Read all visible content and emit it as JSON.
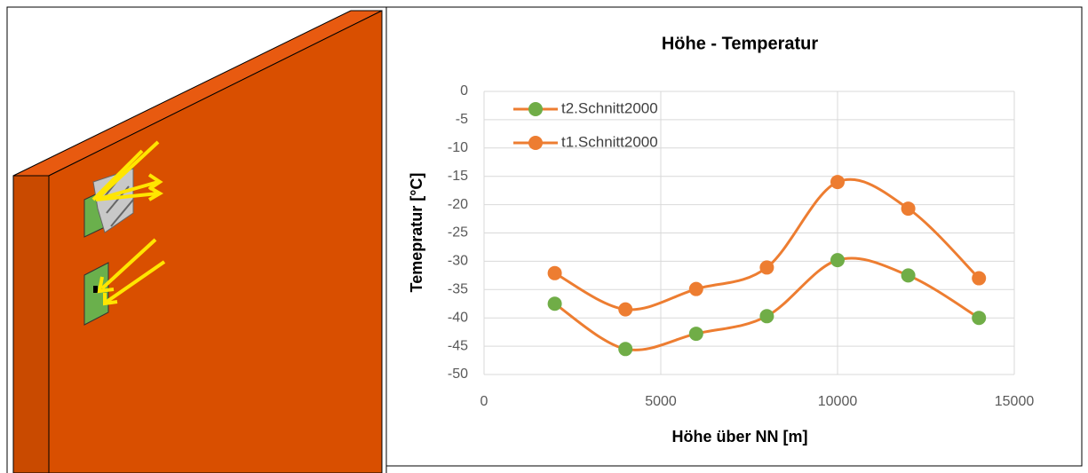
{
  "chart_data": {
    "type": "line",
    "title": "Höhe - Temperatur",
    "x_label": "Höhe über NN [m]",
    "y_label": "Temepratur [°C]",
    "x": [
      2000,
      4000,
      6000,
      8000,
      10000,
      12000,
      14000
    ],
    "series": [
      {
        "name": "t2.Schnitt2000",
        "color": "#ed7d31",
        "marker_color": "#70ad47",
        "values": [
          -37.5,
          -45.5,
          -42.8,
          -39.7,
          -29.8,
          -32.5,
          -40
        ]
      },
      {
        "name": "t1.Schnitt2000",
        "color": "#ed7d31",
        "marker_color": "#ed7d31",
        "values": [
          -32.1,
          -38.5,
          -34.9,
          -31.1,
          -16,
          -20.7,
          -33
        ]
      }
    ],
    "xlim": [
      0,
      15000
    ],
    "xticks": [
      0,
      5000,
      10000,
      15000
    ],
    "ylim": [
      -50,
      0
    ],
    "yticks": [
      0,
      -5,
      -10,
      -15,
      -20,
      -25,
      -30,
      -35,
      -40,
      -45,
      -50
    ],
    "grid": true,
    "smooth": true,
    "legend": "top-left"
  }
}
